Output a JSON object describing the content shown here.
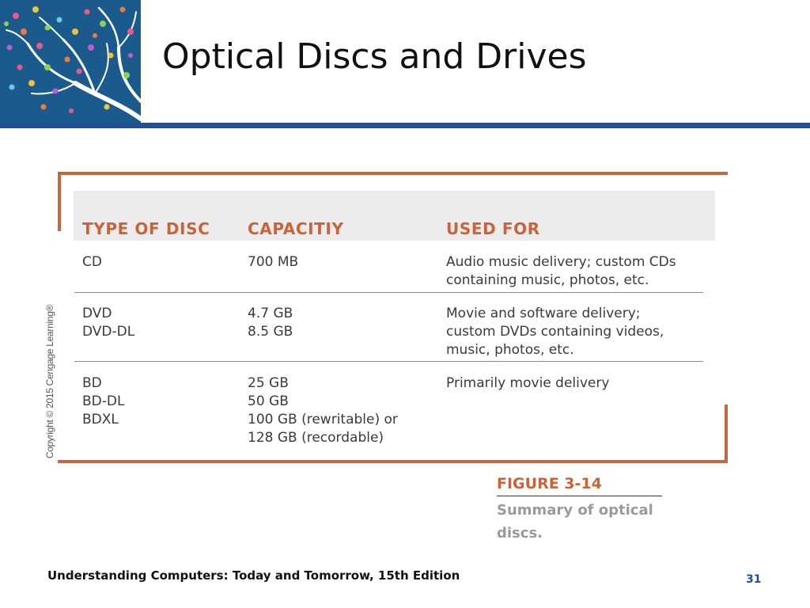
{
  "slide": {
    "title": "Optical Discs and Drives",
    "footer": "Understanding Computers: Today and Tomorrow, 15th Edition",
    "page_number": "31"
  },
  "figure": {
    "copyright": "Copyright © 2015 Cengage Learning®",
    "label": "FIGURE 3-14",
    "caption_line1": "Summary of optical",
    "caption_line2": "discs.",
    "headers": [
      "TYPE OF DISC",
      "CAPACITIY",
      "USED FOR"
    ],
    "rows": [
      {
        "type": [
          "CD"
        ],
        "capacity": [
          "700 MB"
        ],
        "used_for": [
          "Audio music delivery; custom CDs",
          "containing music, photos, etc."
        ]
      },
      {
        "type": [
          "DVD",
          "DVD-DL"
        ],
        "capacity": [
          "4.7 GB",
          "8.5 GB"
        ],
        "used_for": [
          "Movie and software delivery;",
          "custom DVDs containing videos,",
          "music, photos, etc."
        ]
      },
      {
        "type": [
          "BD",
          "BD-DL",
          "BDXL"
        ],
        "capacity": [
          "25 GB",
          "50 GB",
          "100 GB (rewritable) or",
          "128 GB (recordable)"
        ],
        "used_for": [
          "Primarily movie delivery"
        ]
      }
    ]
  },
  "colors": {
    "title_rule": "#1f4f9a",
    "frame": "#c06a45",
    "header_text": "#c9643a",
    "logo_background": "#1b5a8c"
  },
  "icons": {
    "logo": "tree-logo-icon"
  }
}
